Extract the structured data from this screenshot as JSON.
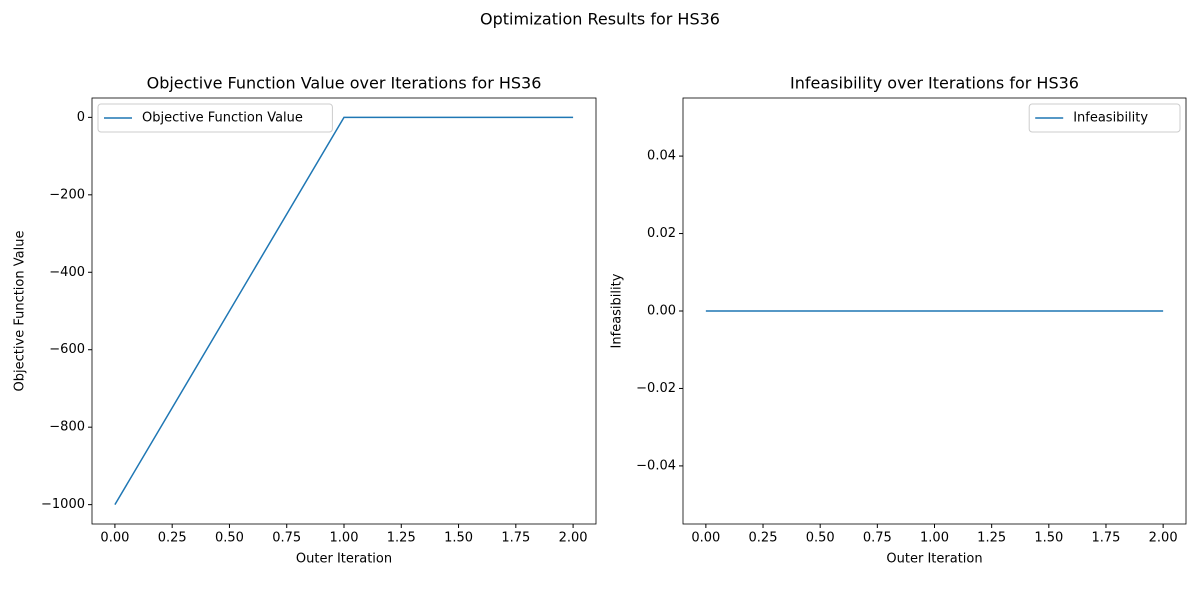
{
  "title": "Optimization Results for HS36",
  "chart_data": [
    {
      "type": "line",
      "title": "Objective Function Value over Iterations for HS36",
      "xlabel": "Outer Iteration",
      "ylabel": "Objective Function Value",
      "x": [
        0,
        1,
        2
      ],
      "series": [
        {
          "name": "Objective Function Value",
          "color": "#1f77b4",
          "values": [
            -1000,
            0,
            0
          ]
        }
      ],
      "xlim": [
        -0.1,
        2.1
      ],
      "ylim": [
        -1050,
        50
      ],
      "xticks": [
        {
          "value": 0,
          "label": "0.00"
        },
        {
          "value": 0.25,
          "label": "0.25"
        },
        {
          "value": 0.5,
          "label": "0.50"
        },
        {
          "value": 0.75,
          "label": "0.75"
        },
        {
          "value": 1,
          "label": "1.00"
        },
        {
          "value": 1.25,
          "label": "1.25"
        },
        {
          "value": 1.5,
          "label": "1.50"
        },
        {
          "value": 1.75,
          "label": "1.75"
        },
        {
          "value": 2,
          "label": "2.00"
        }
      ],
      "yticks": [
        {
          "value": -1000,
          "label": "−1000"
        },
        {
          "value": -800,
          "label": "−800"
        },
        {
          "value": -600,
          "label": "−600"
        },
        {
          "value": -400,
          "label": "−400"
        },
        {
          "value": -200,
          "label": "−200"
        },
        0
      ],
      "legend": "upper left"
    },
    {
      "type": "line",
      "title": "Infeasibility over Iterations for HS36",
      "xlabel": "Outer Iteration",
      "ylabel": "Infeasibility",
      "x": [
        0,
        1,
        2
      ],
      "series": [
        {
          "name": "Infeasibility",
          "color": "#1f77b4",
          "values": [
            0,
            0,
            0
          ]
        }
      ],
      "xlim": [
        -0.1,
        2.1
      ],
      "ylim": [
        -0.055,
        0.055
      ],
      "xticks": [
        {
          "value": 0,
          "label": "0.00"
        },
        {
          "value": 0.25,
          "label": "0.25"
        },
        {
          "value": 0.5,
          "label": "0.50"
        },
        {
          "value": 0.75,
          "label": "0.75"
        },
        {
          "value": 1,
          "label": "1.00"
        },
        {
          "value": 1.25,
          "label": "1.25"
        },
        {
          "value": 1.5,
          "label": "1.50"
        },
        {
          "value": 1.75,
          "label": "1.75"
        },
        {
          "value": 2,
          "label": "2.00"
        }
      ],
      "yticks": [
        {
          "value": -0.04,
          "label": "−0.04"
        },
        {
          "value": -0.02,
          "label": "−0.02"
        },
        {
          "value": 0,
          "label": "0.00"
        },
        {
          "value": 0.02,
          "label": "0.02"
        },
        {
          "value": 0.04,
          "label": "0.04"
        }
      ],
      "legend": "upper right"
    }
  ]
}
